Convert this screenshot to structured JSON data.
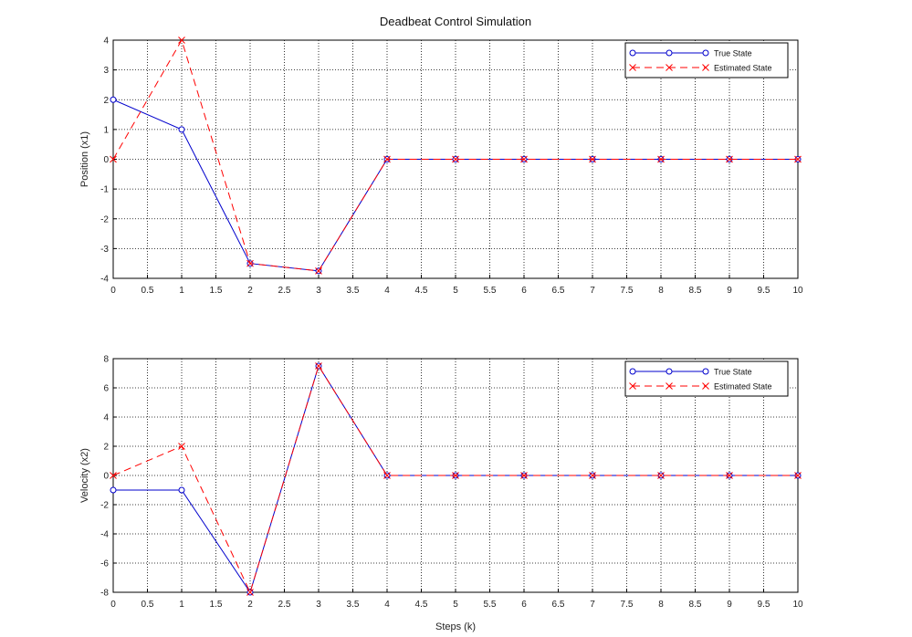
{
  "figure": {
    "title": "Deadbeat Control Simulation",
    "xlabel": "Steps (k)"
  },
  "chart_data": [
    {
      "type": "line",
      "title": "Deadbeat Control Simulation",
      "xlabel": "",
      "ylabel": "Position (x1)",
      "xlim": [
        0,
        10
      ],
      "ylim": [
        -4,
        4
      ],
      "xticks": [
        0,
        0.5,
        1,
        1.5,
        2,
        2.5,
        3,
        3.5,
        4,
        4.5,
        5,
        5.5,
        6,
        6.5,
        7,
        7.5,
        8,
        8.5,
        9,
        9.5,
        10
      ],
      "yticks": [
        -4,
        -3,
        -2,
        -1,
        0,
        1,
        2,
        3,
        4
      ],
      "grid": true,
      "legend_position": "top-right",
      "series": [
        {
          "name": "True State",
          "color": "#0000cc",
          "dash": "solid",
          "marker": "circle",
          "x": [
            0,
            1,
            2,
            3,
            4,
            5,
            6,
            7,
            8,
            9,
            10
          ],
          "y": [
            2,
            1,
            -3.5,
            -3.75,
            0,
            0,
            0,
            0,
            0,
            0,
            0
          ]
        },
        {
          "name": "Estimated State",
          "color": "#ff0000",
          "dash": "dashed",
          "marker": "x",
          "x": [
            0,
            1,
            2,
            3,
            4,
            5,
            6,
            7,
            8,
            9,
            10
          ],
          "y": [
            0,
            4,
            -3.5,
            -3.75,
            0,
            0,
            0,
            0,
            0,
            0,
            0
          ]
        }
      ]
    },
    {
      "type": "line",
      "title": "",
      "xlabel": "Steps (k)",
      "ylabel": "Velocity (x2)",
      "xlim": [
        0,
        10
      ],
      "ylim": [
        -8,
        8
      ],
      "xticks": [
        0,
        0.5,
        1,
        1.5,
        2,
        2.5,
        3,
        3.5,
        4,
        4.5,
        5,
        5.5,
        6,
        6.5,
        7,
        7.5,
        8,
        8.5,
        9,
        9.5,
        10
      ],
      "yticks": [
        -8,
        -6,
        -4,
        -2,
        0,
        2,
        4,
        6,
        8
      ],
      "grid": true,
      "legend_position": "top-right",
      "series": [
        {
          "name": "True State",
          "color": "#0000cc",
          "dash": "solid",
          "marker": "circle",
          "x": [
            0,
            1,
            2,
            3,
            4,
            5,
            6,
            7,
            8,
            9,
            10
          ],
          "y": [
            -1,
            -1,
            -8,
            7.5,
            0,
            0,
            0,
            0,
            0,
            0,
            0
          ]
        },
        {
          "name": "Estimated State",
          "color": "#ff0000",
          "dash": "dashed",
          "marker": "x",
          "x": [
            0,
            1,
            2,
            3,
            4,
            5,
            6,
            7,
            8,
            9,
            10
          ],
          "y": [
            0,
            2,
            -8,
            7.5,
            0,
            0,
            0,
            0,
            0,
            0,
            0
          ]
        }
      ]
    }
  ]
}
